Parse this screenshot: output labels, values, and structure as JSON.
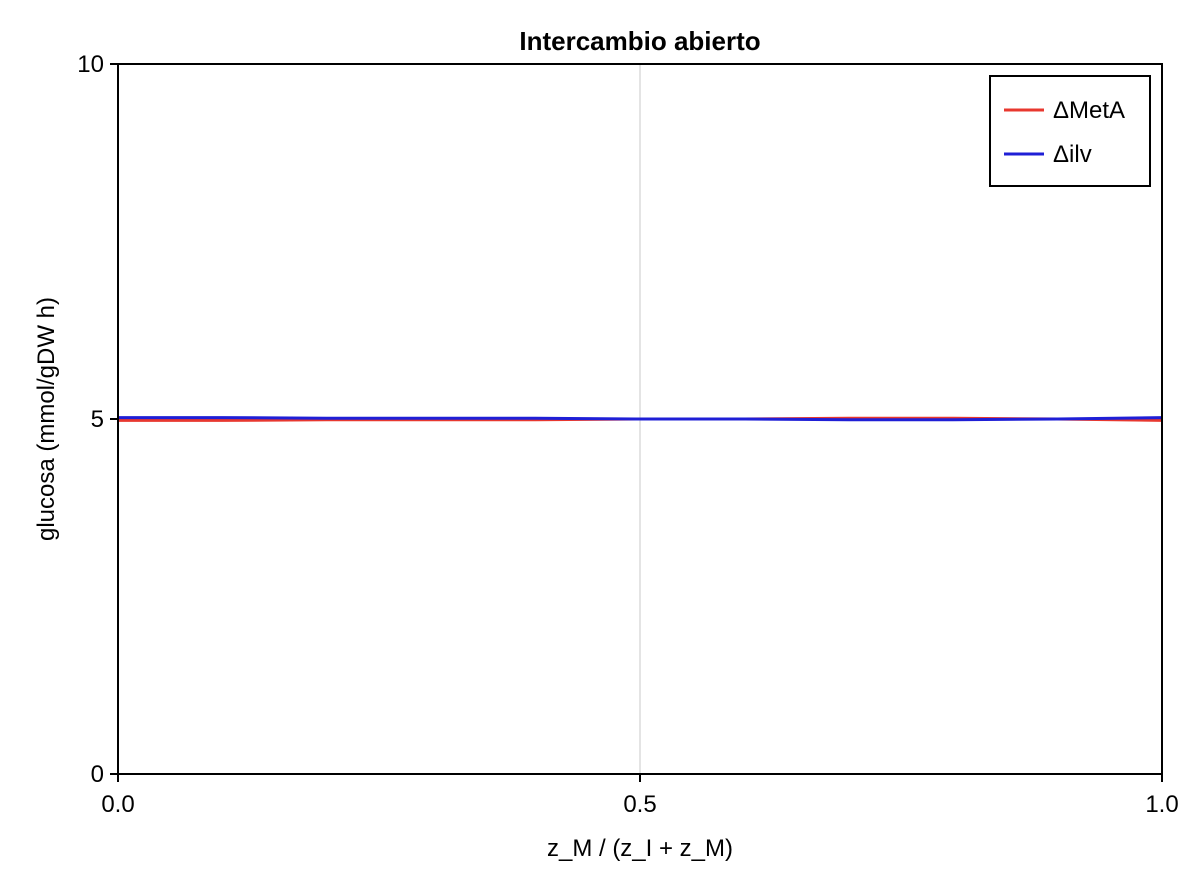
{
  "chart_data": {
    "type": "line",
    "title": "Intercambio abierto",
    "xlabel": "z_M / (z_I + z_M)",
    "ylabel": "glucosa (mmol/gDW h)",
    "xlim": [
      0.0,
      1.0
    ],
    "ylim": [
      0,
      10
    ],
    "x_ticks": [
      "0.0",
      "0.5",
      "1.0"
    ],
    "y_ticks": [
      "0",
      "5",
      "10"
    ],
    "grid": "vertical at x ticks",
    "legend_position": "top-right",
    "x": [
      0.0,
      0.1,
      0.2,
      0.3,
      0.4,
      0.5,
      0.6,
      0.7,
      0.8,
      0.9,
      1.0
    ],
    "series": [
      {
        "name": "ΔMetA",
        "color": "#e8382f",
        "values": [
          4.98,
          4.98,
          4.99,
          4.99,
          4.99,
          5.0,
          5.0,
          5.01,
          5.01,
          5.0,
          4.98
        ]
      },
      {
        "name": "Δilv",
        "color": "#1f1fd6",
        "values": [
          5.02,
          5.02,
          5.01,
          5.01,
          5.01,
          5.0,
          5.0,
          4.99,
          4.99,
          5.0,
          5.02
        ]
      }
    ]
  }
}
